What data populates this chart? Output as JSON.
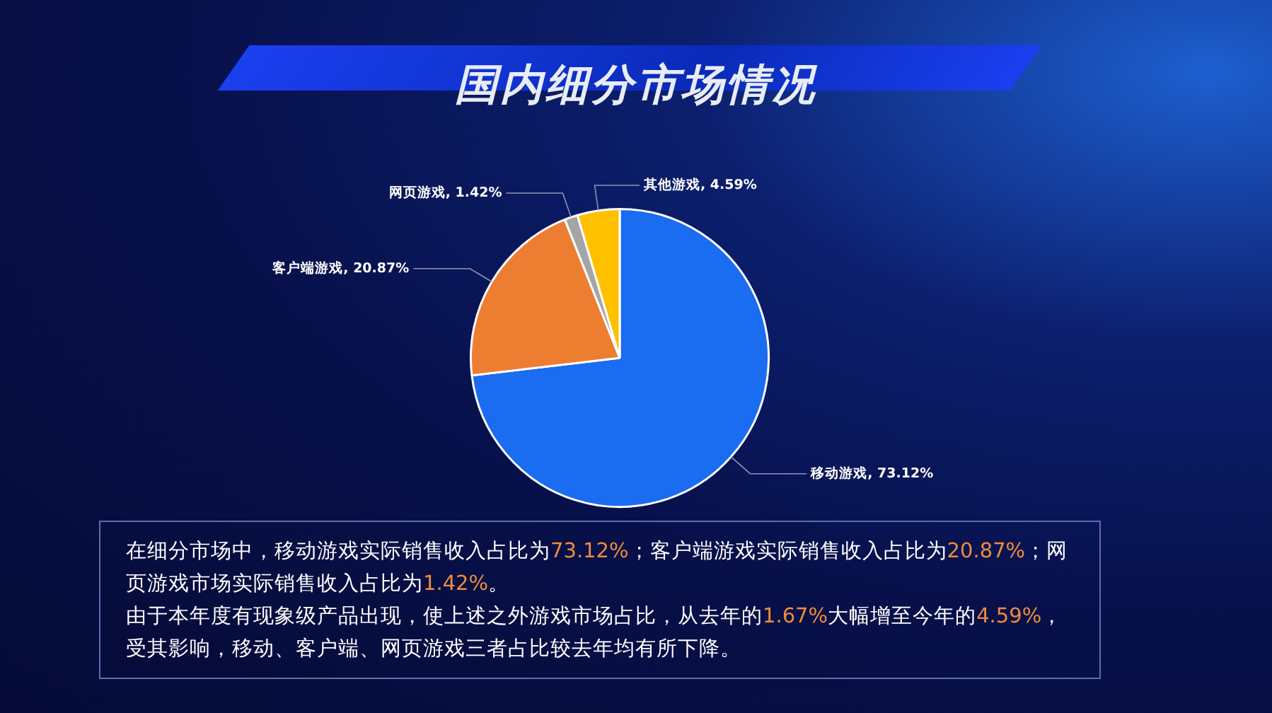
{
  "chart_data": {
    "type": "pie",
    "title": "国内细分市场情况",
    "categories": [
      "移动游戏",
      "客户端游戏",
      "网页游戏",
      "其他游戏"
    ],
    "values": [
      73.12,
      20.87,
      1.42,
      4.59
    ],
    "colors": [
      "#1a6cf0",
      "#ed7d31",
      "#a5a5a5",
      "#ffc000"
    ],
    "value_labels": [
      ", 73.12%",
      ", 20.87%",
      ", 1.42%",
      ", 4.59%"
    ],
    "annotations": [
      "在细分市场中，移动游戏实际销售收入占比为73.12%；客户端游戏实际销售收入占比为20.87%；网页游戏市场实际销售收入占比为1.42%。",
      "由于本年度有现象级产品出现，使上述之外游戏市场占比，从去年的1.67%大幅增至今年的4.59%，受其影响，移动、客户端、网页游戏三者占比较去年均有所下降。"
    ]
  }
}
